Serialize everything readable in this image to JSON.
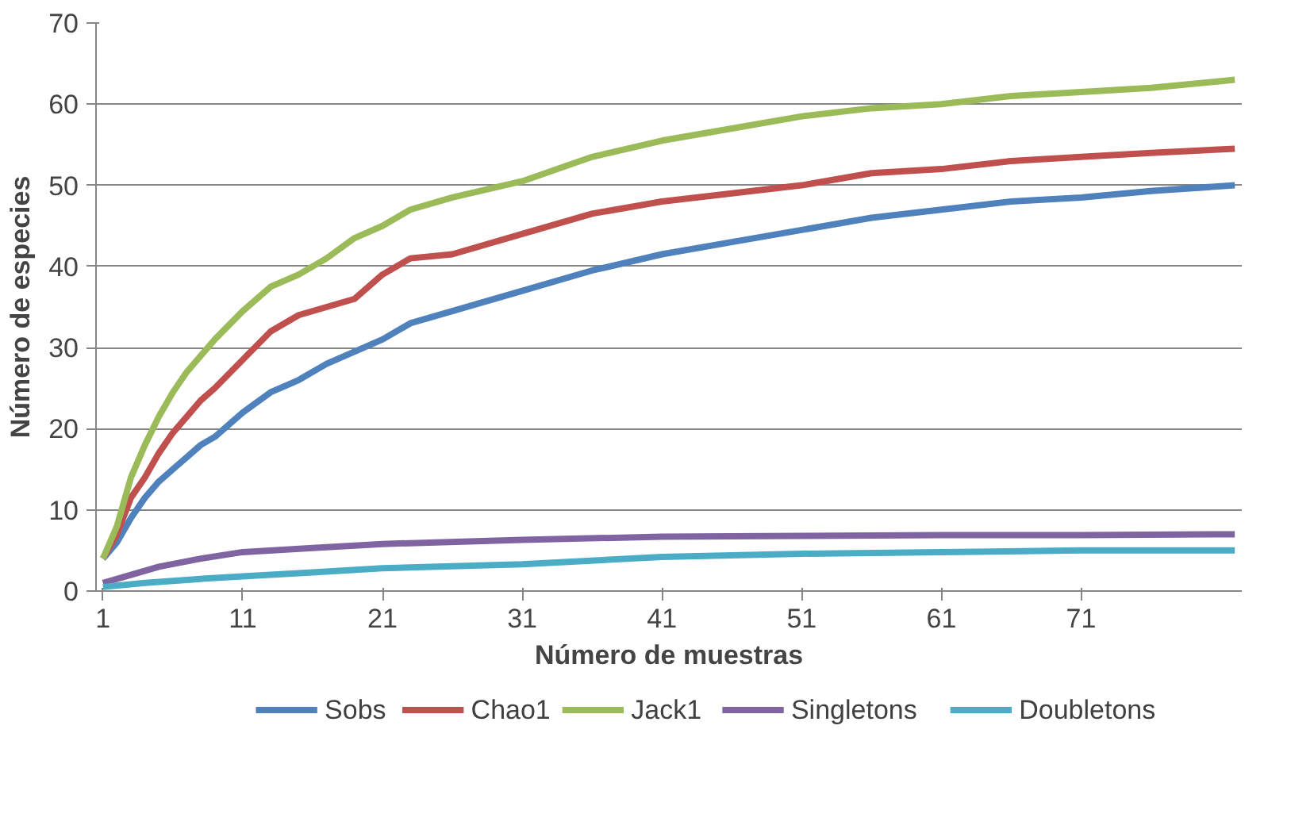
{
  "chart_data": {
    "type": "line",
    "xlabel": "Número de muestras",
    "ylabel": "Número de especies",
    "xlim": [
      0.5,
      82.5
    ],
    "xticks": [
      1,
      11,
      21,
      31,
      41,
      51,
      61,
      71
    ],
    "ylim": [
      0,
      70
    ],
    "yticks": [
      0,
      10,
      20,
      30,
      40,
      50,
      60,
      70
    ],
    "grid": "y",
    "legend": "bottom",
    "line_style": "solid",
    "series": [
      {
        "name": "Sobs",
        "color": "#4f81bd",
        "x": [
          1,
          2,
          3,
          4,
          5,
          6,
          7,
          8,
          9,
          11,
          13,
          15,
          17,
          21,
          23,
          26,
          31,
          36,
          41,
          46,
          51,
          56,
          61,
          66,
          71,
          76,
          82
        ],
        "values": [
          4,
          6,
          9,
          11.5,
          13.5,
          15,
          16.5,
          18,
          19,
          22,
          24.5,
          26,
          28,
          31,
          33,
          34.5,
          37,
          39.5,
          41.5,
          43,
          44.5,
          46,
          47,
          48,
          48.5,
          49.3,
          50
        ]
      },
      {
        "name": "Chao1",
        "color": "#c0504d",
        "x": [
          1,
          2,
          3,
          4,
          5,
          6,
          7,
          8,
          9,
          11,
          13,
          15,
          17,
          19,
          21,
          23,
          26,
          31,
          36,
          41,
          46,
          51,
          56,
          61,
          66,
          71,
          76,
          82
        ],
        "values": [
          4,
          7,
          11.5,
          14,
          17,
          19.5,
          21.5,
          23.5,
          25,
          28.5,
          32,
          34,
          35,
          36,
          39,
          41,
          41.5,
          44,
          46.5,
          48,
          49,
          50,
          51.5,
          52,
          53,
          53.5,
          54,
          54.5
        ]
      },
      {
        "name": "Jack1",
        "color": "#9bbb59",
        "x": [
          1,
          2,
          3,
          4,
          5,
          6,
          7,
          8,
          9,
          11,
          13,
          15,
          17,
          19,
          21,
          23,
          26,
          31,
          36,
          41,
          46,
          51,
          56,
          61,
          66,
          71,
          76,
          82
        ],
        "values": [
          4,
          8,
          14,
          18,
          21.5,
          24.5,
          27,
          29,
          31,
          34.5,
          37.5,
          39,
          41,
          43.5,
          45,
          47,
          48.5,
          50.5,
          53.5,
          55.5,
          57,
          58.5,
          59.5,
          60,
          61,
          61.5,
          62,
          63
        ]
      },
      {
        "name": "Singletons",
        "color": "#8064a2",
        "x": [
          1,
          3,
          5,
          8,
          11,
          16,
          21,
          31,
          41,
          51,
          61,
          71,
          82
        ],
        "values": [
          1,
          2,
          3,
          4,
          4.8,
          5.3,
          5.8,
          6.3,
          6.7,
          6.8,
          6.9,
          6.9,
          7
        ]
      },
      {
        "name": "Doubletons",
        "color": "#4bacc6",
        "x": [
          1,
          4,
          8,
          11,
          16,
          21,
          31,
          41,
          51,
          61,
          71,
          82
        ],
        "values": [
          0.5,
          1,
          1.5,
          1.8,
          2.3,
          2.8,
          3.3,
          4.2,
          4.6,
          4.8,
          5,
          5
        ]
      }
    ]
  }
}
